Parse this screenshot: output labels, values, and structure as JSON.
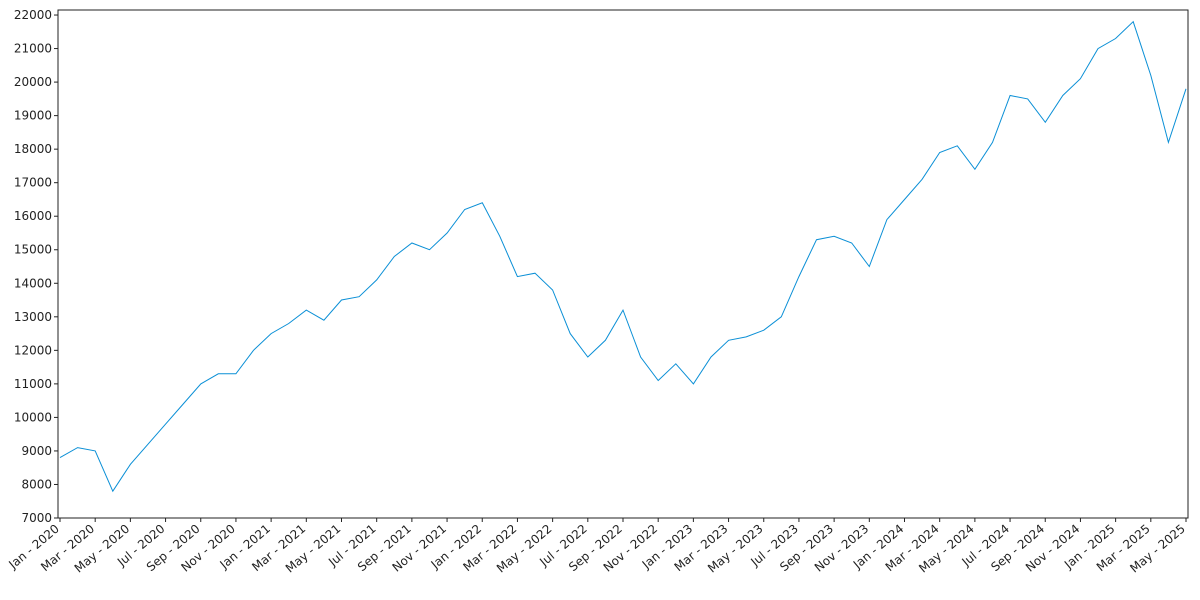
{
  "chart_data": {
    "type": "line",
    "x": [
      "2020-01",
      "2020-02",
      "2020-03",
      "2020-04",
      "2020-05",
      "2020-06",
      "2020-07",
      "2020-08",
      "2020-09",
      "2020-10",
      "2020-11",
      "2020-12",
      "2021-01",
      "2021-02",
      "2021-03",
      "2021-04",
      "2021-05",
      "2021-06",
      "2021-07",
      "2021-08",
      "2021-09",
      "2021-10",
      "2021-11",
      "2021-12",
      "2022-01",
      "2022-02",
      "2022-03",
      "2022-04",
      "2022-05",
      "2022-06",
      "2022-07",
      "2022-08",
      "2022-09",
      "2022-10",
      "2022-11",
      "2022-12",
      "2023-01",
      "2023-02",
      "2023-03",
      "2023-04",
      "2023-05",
      "2023-06",
      "2023-07",
      "2023-08",
      "2023-09",
      "2023-10",
      "2023-11",
      "2023-12",
      "2024-01",
      "2024-02",
      "2024-03",
      "2024-04",
      "2024-05",
      "2024-06",
      "2024-07",
      "2024-08",
      "2024-09",
      "2024-10",
      "2024-11",
      "2024-12",
      "2025-01",
      "2025-02",
      "2025-03",
      "2025-04",
      "2025-05"
    ],
    "series": [
      {
        "color": "#0a8fd6",
        "values": [
          8800,
          9100,
          9000,
          7800,
          8600,
          9200,
          9800,
          10400,
          11000,
          11300,
          11300,
          12000,
          12500,
          12800,
          13200,
          12900,
          13500,
          13600,
          14100,
          14800,
          15200,
          15000,
          15500,
          16200,
          16400,
          15400,
          14200,
          14300,
          13800,
          12500,
          11800,
          12300,
          13200,
          11800,
          11100,
          11600,
          11000,
          11800,
          12300,
          12400,
          12600,
          13000,
          14200,
          15300,
          15400,
          15200,
          14500,
          15900,
          16500,
          17100,
          17900,
          18100,
          17400,
          18200,
          19600,
          19500,
          18800,
          19600,
          20100,
          21000,
          21300,
          21800,
          20200,
          18200,
          19800
        ]
      }
    ],
    "xlim": [
      "2020-01",
      "2025-05"
    ],
    "xticks": [
      {
        "value": "2020-01",
        "label": "Jan - 2020"
      },
      {
        "value": "2020-03",
        "label": "Mar - 2020"
      },
      {
        "value": "2020-05",
        "label": "May - 2020"
      },
      {
        "value": "2020-07",
        "label": "Jul - 2020"
      },
      {
        "value": "2020-09",
        "label": "Sep - 2020"
      },
      {
        "value": "2020-11",
        "label": "Nov - 2020"
      },
      {
        "value": "2021-01",
        "label": "Jan - 2021"
      },
      {
        "value": "2021-03",
        "label": "Mar - 2021"
      },
      {
        "value": "2021-05",
        "label": "May - 2021"
      },
      {
        "value": "2021-07",
        "label": "Jul - 2021"
      },
      {
        "value": "2021-09",
        "label": "Sep - 2021"
      },
      {
        "value": "2021-11",
        "label": "Nov - 2021"
      },
      {
        "value": "2022-01",
        "label": "Jan - 2022"
      },
      {
        "value": "2022-03",
        "label": "Mar - 2022"
      },
      {
        "value": "2022-05",
        "label": "May - 2022"
      },
      {
        "value": "2022-07",
        "label": "Jul - 2022"
      },
      {
        "value": "2022-09",
        "label": "Sep - 2022"
      },
      {
        "value": "2022-11",
        "label": "Nov - 2022"
      },
      {
        "value": "2023-01",
        "label": "Jan - 2023"
      },
      {
        "value": "2023-03",
        "label": "Mar - 2023"
      },
      {
        "value": "2023-05",
        "label": "May - 2023"
      },
      {
        "value": "2023-07",
        "label": "Jul - 2023"
      },
      {
        "value": "2023-09",
        "label": "Sep - 2023"
      },
      {
        "value": "2023-11",
        "label": "Nov - 2023"
      },
      {
        "value": "2024-01",
        "label": "Jan - 2024"
      },
      {
        "value": "2024-03",
        "label": "Mar - 2024"
      },
      {
        "value": "2024-05",
        "label": "May - 2024"
      },
      {
        "value": "2024-07",
        "label": "Jul - 2024"
      },
      {
        "value": "2024-09",
        "label": "Sep - 2024"
      },
      {
        "value": "2024-11",
        "label": "Nov - 2024"
      },
      {
        "value": "2025-01",
        "label": "Jan - 2025"
      },
      {
        "value": "2025-03",
        "label": "Mar - 2025"
      },
      {
        "value": "2025-05",
        "label": "May - 2025"
      }
    ],
    "ylim": [
      7000,
      22150
    ],
    "yticks": [
      7000,
      8000,
      9000,
      10000,
      11000,
      12000,
      13000,
      14000,
      15000,
      16000,
      17000,
      18000,
      19000,
      20000,
      21000,
      22000
    ],
    "grid": false
  }
}
